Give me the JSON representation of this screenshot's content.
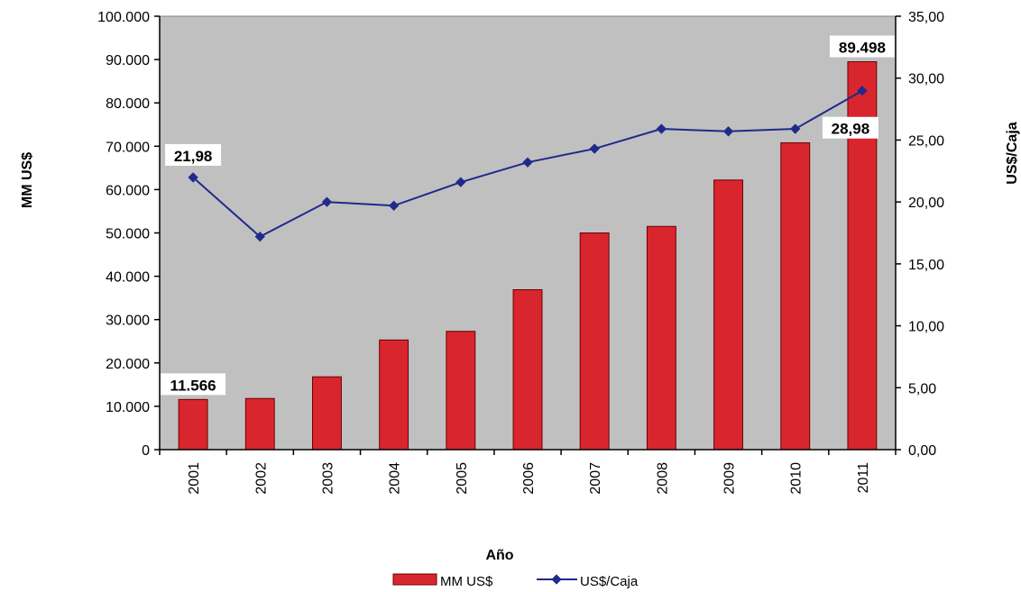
{
  "chart_data": {
    "type": "bar",
    "categories": [
      "2001",
      "2002",
      "2003",
      "2004",
      "2005",
      "2006",
      "2007",
      "2008",
      "2009",
      "2010",
      "2011"
    ],
    "series": [
      {
        "name": "MM US$",
        "type": "bar",
        "axis": "left",
        "color": "#d9262e",
        "values": [
          11566,
          11800,
          16800,
          25300,
          27300,
          36900,
          50000,
          51500,
          62200,
          70800,
          89498
        ]
      },
      {
        "name": "US$/Caja",
        "type": "line",
        "axis": "right",
        "color": "#1f2a8a",
        "values": [
          21.98,
          17.2,
          20.0,
          19.7,
          21.6,
          23.2,
          24.3,
          25.9,
          25.7,
          25.9,
          28.98
        ]
      }
    ],
    "xlabel": "Año",
    "ylabel": "MM US$",
    "ylabel_right": "US$/Caja",
    "ylim": [
      0,
      100000
    ],
    "ylim_right": [
      0,
      35
    ],
    "yticks": [
      "0",
      "10.000",
      "20.000",
      "30.000",
      "40.000",
      "50.000",
      "60.000",
      "70.000",
      "80.000",
      "90.000",
      "100.000"
    ],
    "yticks_right": [
      "0,00",
      "5,00",
      "10,00",
      "15,00",
      "20,00",
      "25,00",
      "30,00",
      "35,00"
    ],
    "data_labels": [
      {
        "series": "MM US$",
        "index": 0,
        "text": "11.566"
      },
      {
        "series": "MM US$",
        "index": 10,
        "text": "89.498"
      },
      {
        "series": "US$/Caja",
        "index": 0,
        "text": "21,98"
      },
      {
        "series": "US$/Caja",
        "index": 10,
        "text": "28,98"
      }
    ],
    "plot_background": "#c0c0c0",
    "grid": false,
    "legend_position": "bottom"
  }
}
